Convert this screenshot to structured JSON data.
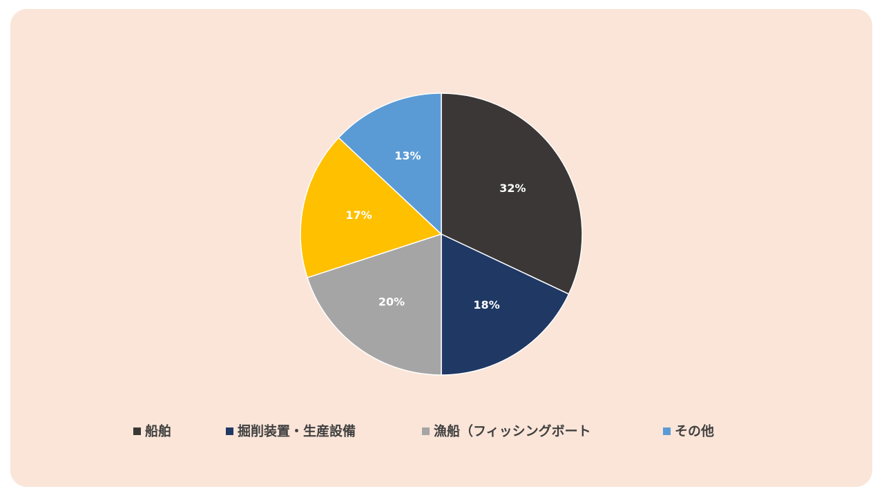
{
  "chart_data": {
    "type": "pie",
    "categories": [
      "船舶",
      "掘削装置・生産設備",
      "漁船（フィッシングボート",
      null,
      "その他"
    ],
    "values": [
      32,
      18,
      20,
      17,
      13
    ],
    "value_labels": [
      "32%",
      "18%",
      "20%",
      "17%",
      "13%"
    ],
    "colors": [
      "#3b3736",
      "#1f3864",
      "#a5a5a5",
      "#ffc000",
      "#5b9bd5"
    ],
    "legend": "bottom"
  }
}
